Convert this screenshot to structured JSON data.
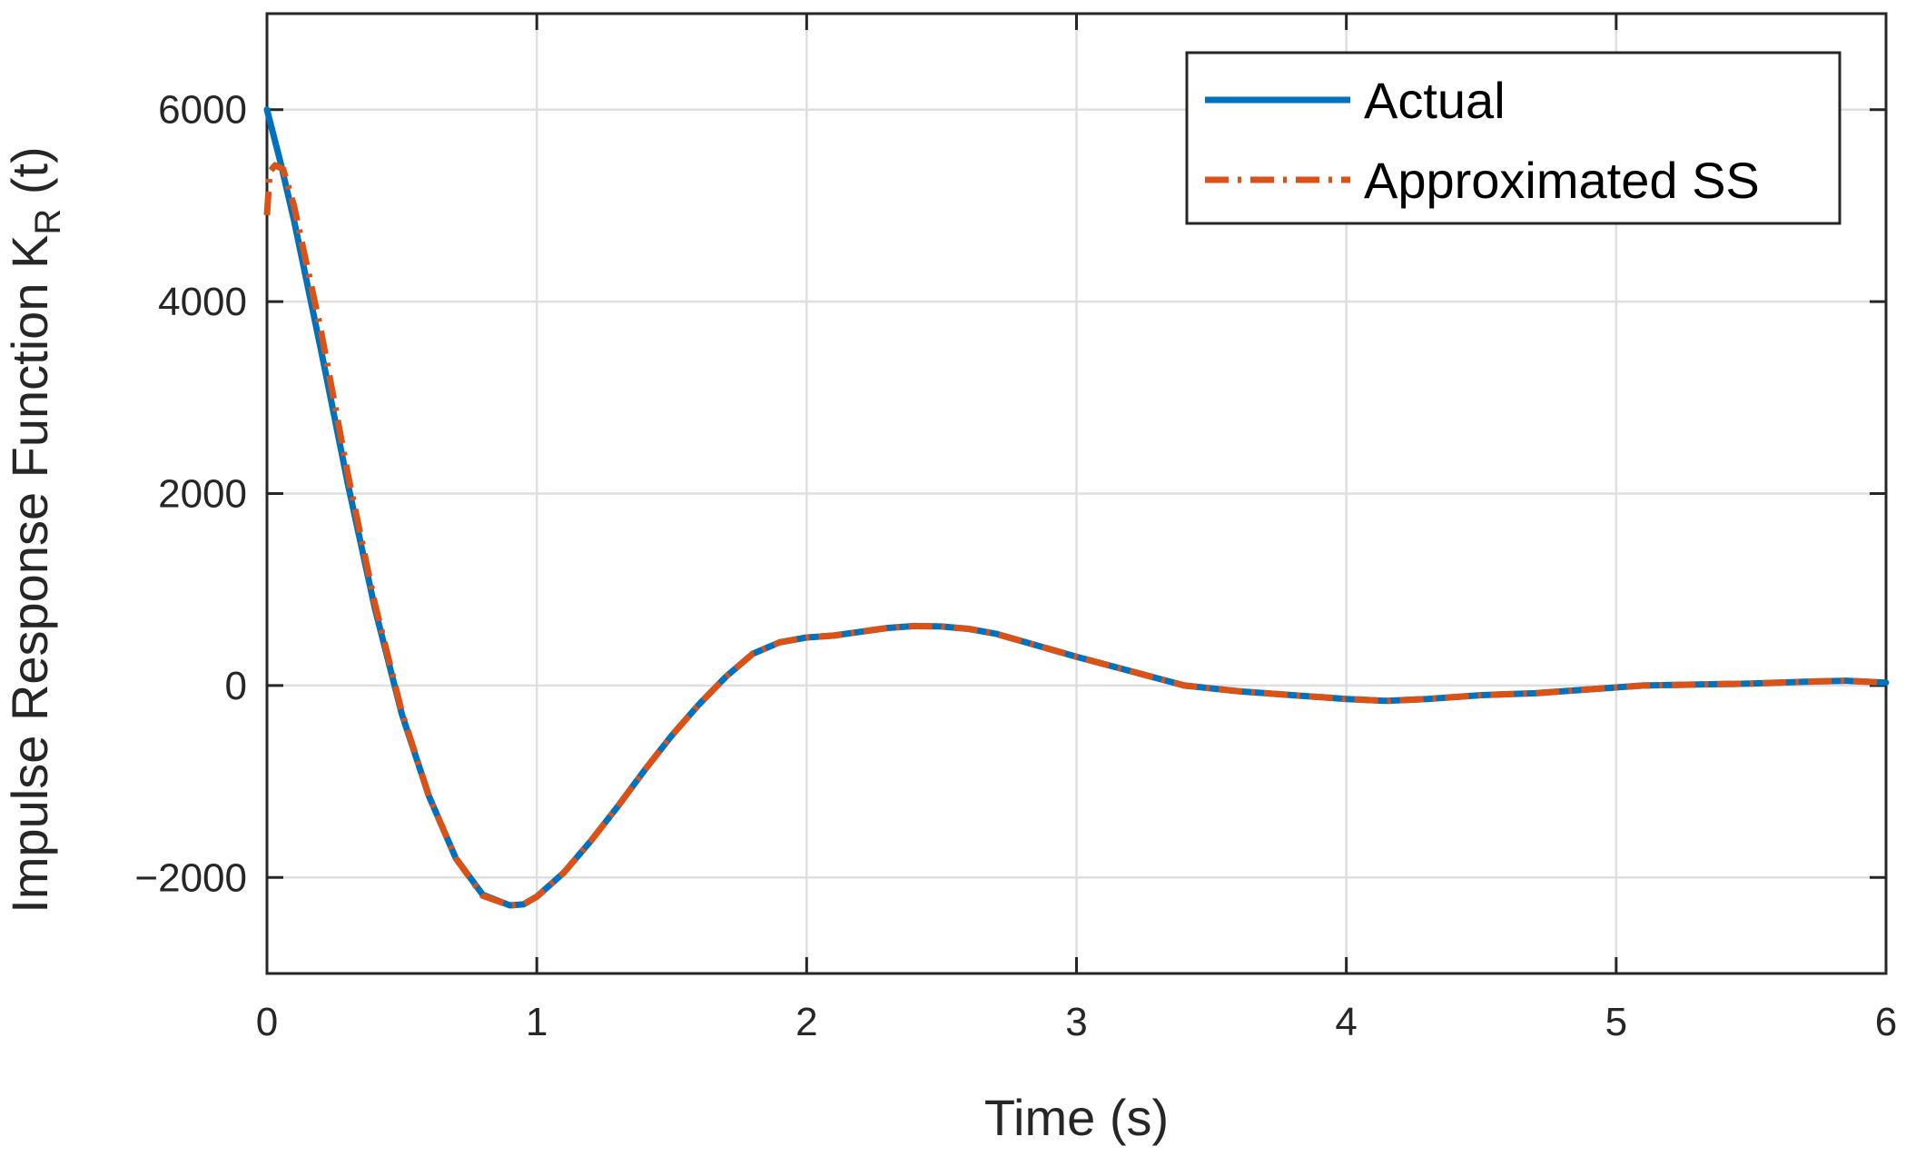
{
  "chart_data": {
    "type": "line",
    "xlabel": "Time (s)",
    "ylabel": {
      "main": "Impulse Response Function K",
      "subscript": "R",
      "suffix": " (t)"
    },
    "xlim": [
      0,
      6
    ],
    "ylim": [
      -3000,
      7000
    ],
    "xticks": [
      0,
      1,
      2,
      3,
      4,
      5,
      6
    ],
    "xtick_labels": [
      "0",
      "1",
      "2",
      "3",
      "4",
      "5",
      "6"
    ],
    "yticks": [
      -2000,
      0,
      2000,
      4000,
      6000
    ],
    "ytick_labels": [
      "−2000",
      "0",
      "2000",
      "4000",
      "6000"
    ],
    "grid": true,
    "legend_position": "top-right",
    "series": [
      {
        "name": "Actual",
        "color": "#0072BD",
        "style": "solid",
        "x": [
          0,
          0.05,
          0.1,
          0.2,
          0.3,
          0.4,
          0.5,
          0.6,
          0.7,
          0.8,
          0.9,
          0.95,
          1.0,
          1.1,
          1.2,
          1.3,
          1.4,
          1.5,
          1.6,
          1.7,
          1.8,
          1.9,
          2.0,
          2.1,
          2.2,
          2.3,
          2.4,
          2.5,
          2.6,
          2.7,
          2.8,
          2.9,
          3.0,
          3.2,
          3.4,
          3.6,
          3.8,
          4.0,
          4.15,
          4.3,
          4.5,
          4.7,
          4.9,
          5.1,
          5.3,
          5.5,
          5.7,
          5.85,
          6.0
        ],
        "y": [
          6000,
          5450,
          4850,
          3500,
          2100,
          800,
          -300,
          -1150,
          -1800,
          -2180,
          -2290,
          -2280,
          -2200,
          -1950,
          -1620,
          -1260,
          -880,
          -520,
          -200,
          90,
          330,
          450,
          500,
          520,
          560,
          600,
          620,
          615,
          590,
          540,
          460,
          380,
          300,
          150,
          0,
          -60,
          -100,
          -140,
          -160,
          -140,
          -100,
          -80,
          -40,
          0,
          10,
          20,
          40,
          50,
          30
        ]
      },
      {
        "name": "Approximated SS",
        "color": "#D95319",
        "style": "dashdot",
        "x": [
          0,
          0.01,
          0.03,
          0.06,
          0.1,
          0.2,
          0.3,
          0.4,
          0.5,
          0.6,
          0.7,
          0.8,
          0.9,
          0.95,
          1.0,
          1.1,
          1.2,
          1.3,
          1.4,
          1.5,
          1.6,
          1.7,
          1.8,
          1.9,
          2.0,
          2.1,
          2.2,
          2.3,
          2.4,
          2.5,
          2.6,
          2.7,
          2.8,
          2.9,
          3.0,
          3.2,
          3.4,
          3.6,
          3.8,
          4.0,
          4.15,
          4.3,
          4.5,
          4.7,
          4.9,
          5.1,
          5.3,
          5.5,
          5.7,
          5.85,
          6.0
        ],
        "y": [
          4900,
          5350,
          5420,
          5380,
          5000,
          3700,
          2200,
          850,
          -280,
          -1150,
          -1800,
          -2190,
          -2290,
          -2280,
          -2200,
          -1950,
          -1620,
          -1260,
          -880,
          -520,
          -200,
          90,
          330,
          450,
          500,
          520,
          560,
          600,
          620,
          615,
          590,
          540,
          460,
          380,
          300,
          150,
          0,
          -60,
          -100,
          -140,
          -160,
          -140,
          -100,
          -80,
          -40,
          0,
          10,
          20,
          40,
          50,
          30
        ]
      }
    ]
  }
}
